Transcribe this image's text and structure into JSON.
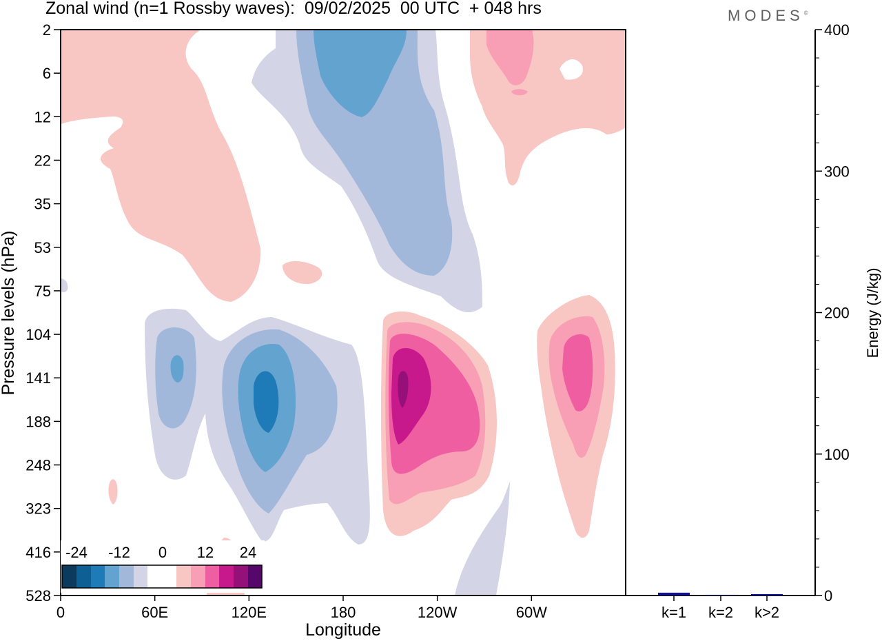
{
  "header": {
    "title": "Zonal wind (n=1 Rossby waves):  09/02/2025  00 UTC  + 048 hrs",
    "brand": "MODES",
    "brand_mark": "©"
  },
  "colors": {
    "neg_dark": "#0b3a5c",
    "neg_1": "#0e5f94",
    "neg_2": "#1f7ab8",
    "neg_3": "#62a3cf",
    "neg_4": "#a2b8da",
    "neg_5": "#d3d5e7",
    "zero": "#ffffff",
    "pos_1": "#f9c7c3",
    "pos_2": "#f89eb5",
    "pos_3": "#ef5ea1",
    "pos_4": "#c7198c",
    "pos_5": "#951179",
    "pos_dark": "#55086a",
    "energy_bar": "#14148a"
  },
  "chart_data": [
    {
      "type": "heatmap",
      "title": "Zonal wind (n=1 Rossby waves):  09/02/2025  00 UTC  + 048 hrs",
      "xlabel": "Longitude",
      "ylabel": "Pressure levels (hPa)",
      "x_ticks": [
        "0",
        "60E",
        "120E",
        "180",
        "120W",
        "60W"
      ],
      "x_tick_values": [
        0,
        60,
        120,
        180,
        240,
        300
      ],
      "xlim": [
        0,
        360
      ],
      "y_ticks": [
        "2",
        "6",
        "12",
        "22",
        "35",
        "53",
        "75",
        "104",
        "141",
        "188",
        "248",
        "323",
        "416",
        "528"
      ],
      "colorbar": {
        "tick_labels": [
          "-24",
          "-12",
          "0",
          "12",
          "24"
        ],
        "levels": [
          -30,
          -24,
          -18,
          -12,
          -6,
          -3,
          0,
          3,
          6,
          12,
          18,
          24,
          30
        ]
      },
      "features": [
        {
          "sign": "positive",
          "peak": 6,
          "lon": 25,
          "pressure": 22
        },
        {
          "sign": "negative",
          "peak": -12,
          "lon": 195,
          "pressure": 6
        },
        {
          "sign": "negative",
          "peak": -6,
          "lon": 195,
          "pressure": 53
        },
        {
          "sign": "positive",
          "peak": 6,
          "lon": 280,
          "pressure": 6
        },
        {
          "sign": "negative",
          "peak": -12,
          "lon": 75,
          "pressure": 141
        },
        {
          "sign": "negative",
          "peak": -18,
          "lon": 130,
          "pressure": 160
        },
        {
          "sign": "positive",
          "peak": 24,
          "lon": 217,
          "pressure": 141
        },
        {
          "sign": "positive",
          "peak": 12,
          "lon": 333,
          "pressure": 141
        }
      ]
    },
    {
      "type": "bar",
      "ylabel": "Energy (J/kg)",
      "categories": [
        "k=1",
        "k=2",
        "k>2"
      ],
      "values": [
        2,
        0.5,
        1
      ],
      "ylim": [
        0,
        400
      ],
      "y_ticks": [
        "0",
        "100",
        "200",
        "300",
        "400"
      ]
    }
  ]
}
